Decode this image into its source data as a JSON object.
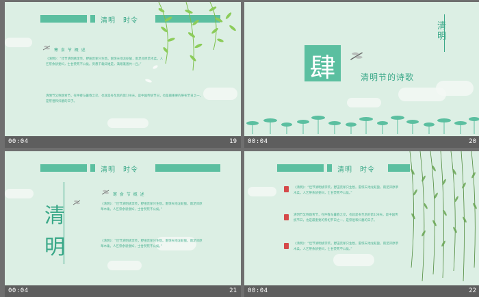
{
  "colors": {
    "accent": "#5bbfa0",
    "text": "#3aa888",
    "background": "#dcefe4",
    "footer": "#5e5e5e"
  },
  "slides": [
    {
      "number": "19",
      "time": "00:04",
      "header_title": "清明　时令",
      "subtitle": "寒 食 节 概 述",
      "para1": "《清明》：“佳节清明桃李笑，野田荒冢只生愁。雷惊天地龙蛇蛰，雨足郊原草木柔。人乞祭余骄妾妇，士甘焚死不公侯。贤愚千载知谁是，满眼蓬蒿共一丘。”",
      "para2": "清明节又称踏青节，在仲春与暮春之交，也就是冬至后的第108天。是中国传统节日，也是最重要的祭祀节日之一，是祭祖和扫墓的日子。"
    },
    {
      "number": "20",
      "time": "00:04",
      "big_char": "肆",
      "title": "清明节的诗歌",
      "vertical_title": "清明"
    },
    {
      "number": "21",
      "time": "00:04",
      "header_title": "清明　时令",
      "subtitle": "寒 食 节 概 述",
      "big_vertical": "清明",
      "para1": "《清明》：“佳节清明桃李笑，野田荒冢只生愁。雷惊天地龙蛇蛰，雨足郊原草木柔。人乞祭余骄妾妇，士甘焚死不公侯。”",
      "para2": "《清明》：“佳节清明桃李笑，野田荒冢只生愁。雷惊天地龙蛇蛰，雨足郊原草木柔。人乞祭余骄妾妇，士甘焚死不公侯。”"
    },
    {
      "number": "22",
      "time": "00:04",
      "header_title": "清明　时令",
      "para1": "《清明》：“佳节清明桃李笑，野田荒冢只生愁。雷惊天地龙蛇蛰，雨足郊原草木柔。人乞祭余骄妾妇，士甘焚死不公侯。”",
      "para2": "清明节又称踏青节，在仲春与暮春之交，也就是冬至后的第108天。是中国传统节日，也是最重要的祭祀节日之一，是祭祖和扫墓的日子。",
      "para3": "《清明》：“佳节清明桃李笑，野田荒冢只生愁。雷惊天地龙蛇蛰，雨足郊原草木柔。人乞祭余骄妾妇，士甘焚死不公侯。”"
    }
  ]
}
